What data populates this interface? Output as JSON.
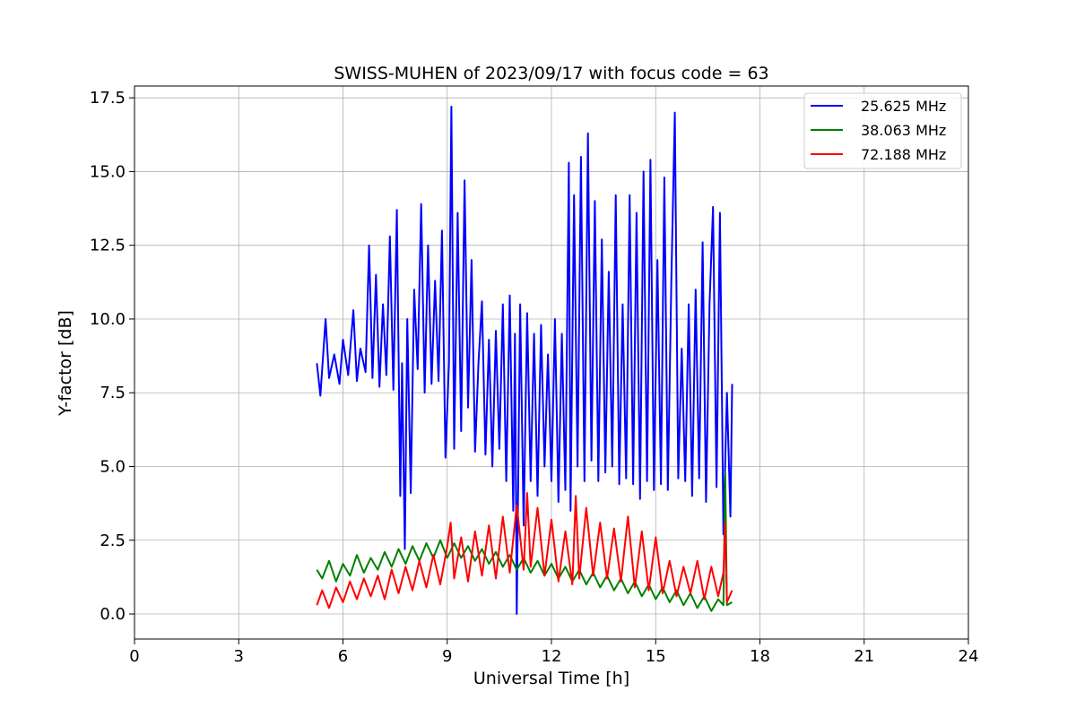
{
  "chart_data": {
    "type": "line",
    "title": "SWISS-MUHEN of 2023/09/17 with focus code = 63",
    "xlabel": "Universal Time [h]",
    "ylabel": "Y-factor [dB]",
    "xlim": [
      0,
      24
    ],
    "ylim": [
      -0.85,
      17.9
    ],
    "xticks": [
      0,
      3,
      6,
      9,
      12,
      15,
      18,
      21,
      24
    ],
    "yticks": [
      0.0,
      2.5,
      5.0,
      7.5,
      10.0,
      12.5,
      15.0,
      17.5
    ],
    "ytick_labels": [
      "0.0",
      "2.5",
      "5.0",
      "7.5",
      "10.0",
      "12.5",
      "15.0",
      "17.5"
    ],
    "grid": true,
    "legend_position": "top-right",
    "series": [
      {
        "name": "25.625 MHz",
        "color": "#0000ff",
        "x": [
          5.25,
          5.35,
          5.5,
          5.6,
          5.75,
          5.9,
          6.0,
          6.15,
          6.3,
          6.4,
          6.5,
          6.65,
          6.75,
          6.85,
          6.95,
          7.05,
          7.15,
          7.25,
          7.35,
          7.45,
          7.55,
          7.65,
          7.7,
          7.78,
          7.85,
          7.95,
          8.05,
          8.15,
          8.25,
          8.35,
          8.45,
          8.55,
          8.65,
          8.75,
          8.85,
          8.95,
          9.05,
          9.12,
          9.2,
          9.3,
          9.4,
          9.5,
          9.6,
          9.7,
          9.8,
          9.9,
          10.0,
          10.1,
          10.2,
          10.3,
          10.4,
          10.5,
          10.6,
          10.7,
          10.8,
          10.9,
          10.95,
          11.0,
          11.1,
          11.2,
          11.3,
          11.4,
          11.5,
          11.6,
          11.7,
          11.8,
          11.9,
          12.0,
          12.1,
          12.2,
          12.3,
          12.4,
          12.5,
          12.55,
          12.65,
          12.75,
          12.85,
          12.95,
          13.05,
          13.15,
          13.25,
          13.35,
          13.45,
          13.55,
          13.65,
          13.75,
          13.85,
          13.95,
          14.05,
          14.15,
          14.25,
          14.35,
          14.45,
          14.55,
          14.65,
          14.75,
          14.85,
          14.95,
          15.05,
          15.15,
          15.25,
          15.35,
          15.45,
          15.55,
          15.65,
          15.75,
          15.85,
          15.95,
          16.05,
          16.15,
          16.25,
          16.35,
          16.45,
          16.55,
          16.65,
          16.75,
          16.85,
          16.95,
          17.05,
          17.15,
          17.2
        ],
        "y": [
          8.5,
          7.4,
          10.0,
          8.0,
          8.8,
          7.8,
          9.3,
          8.1,
          10.3,
          7.9,
          9.0,
          8.2,
          12.5,
          8.0,
          11.5,
          7.7,
          10.5,
          8.1,
          12.8,
          7.6,
          13.7,
          4.0,
          8.5,
          2.2,
          10.0,
          4.1,
          11.0,
          8.3,
          13.9,
          7.5,
          12.5,
          7.8,
          11.3,
          7.9,
          13.0,
          5.3,
          8.5,
          17.2,
          5.6,
          13.6,
          6.2,
          14.7,
          7.0,
          12.0,
          5.5,
          8.5,
          10.6,
          5.4,
          9.3,
          5.0,
          9.6,
          5.6,
          10.5,
          4.5,
          10.8,
          3.5,
          9.5,
          0.0,
          10.5,
          3.0,
          10.2,
          4.5,
          9.5,
          4.0,
          9.8,
          5.0,
          8.8,
          4.5,
          10.0,
          3.8,
          9.5,
          4.2,
          15.3,
          3.5,
          14.2,
          5.0,
          15.5,
          4.5,
          16.3,
          5.2,
          14.0,
          4.5,
          12.7,
          4.8,
          11.6,
          5.0,
          14.2,
          4.4,
          10.5,
          4.6,
          14.2,
          4.4,
          13.6,
          3.9,
          15.0,
          4.5,
          15.4,
          4.2,
          12.0,
          4.4,
          14.8,
          4.2,
          11.3,
          17.0,
          4.6,
          9.0,
          4.5,
          10.5,
          4.0,
          11.0,
          4.6,
          12.6,
          3.8,
          10.5,
          13.8,
          4.3,
          13.6,
          2.7,
          7.5,
          3.3,
          7.8
        ]
      },
      {
        "name": "38.063 MHz",
        "color": "#008000",
        "x": [
          5.25,
          5.4,
          5.6,
          5.8,
          6.0,
          6.2,
          6.4,
          6.6,
          6.8,
          7.0,
          7.2,
          7.4,
          7.6,
          7.8,
          8.0,
          8.2,
          8.4,
          8.6,
          8.8,
          9.0,
          9.2,
          9.4,
          9.6,
          9.8,
          10.0,
          10.2,
          10.4,
          10.6,
          10.8,
          11.0,
          11.2,
          11.4,
          11.6,
          11.8,
          12.0,
          12.2,
          12.4,
          12.6,
          12.8,
          13.0,
          13.2,
          13.4,
          13.6,
          13.8,
          14.0,
          14.2,
          14.4,
          14.6,
          14.8,
          15.0,
          15.2,
          15.4,
          15.6,
          15.8,
          16.0,
          16.2,
          16.4,
          16.6,
          16.8,
          16.95,
          17.0,
          17.05,
          17.2
        ],
        "y": [
          1.5,
          1.2,
          1.8,
          1.1,
          1.7,
          1.3,
          2.0,
          1.4,
          1.9,
          1.5,
          2.1,
          1.6,
          2.2,
          1.7,
          2.3,
          1.8,
          2.4,
          1.9,
          2.5,
          1.9,
          2.4,
          1.9,
          2.3,
          1.8,
          2.2,
          1.7,
          2.1,
          1.6,
          2.0,
          1.5,
          1.9,
          1.4,
          1.8,
          1.3,
          1.7,
          1.2,
          1.6,
          1.1,
          1.5,
          1.0,
          1.4,
          0.9,
          1.3,
          0.8,
          1.2,
          0.7,
          1.1,
          0.6,
          1.0,
          0.5,
          0.9,
          0.4,
          0.8,
          0.3,
          0.7,
          0.2,
          0.6,
          0.1,
          0.5,
          0.3,
          4.8,
          0.3,
          0.4
        ]
      },
      {
        "name": "72.188 MHz",
        "color": "#ff0000",
        "x": [
          5.25,
          5.4,
          5.6,
          5.8,
          6.0,
          6.2,
          6.4,
          6.6,
          6.8,
          7.0,
          7.2,
          7.4,
          7.6,
          7.8,
          8.0,
          8.2,
          8.4,
          8.6,
          8.8,
          9.0,
          9.1,
          9.2,
          9.4,
          9.6,
          9.8,
          10.0,
          10.2,
          10.4,
          10.6,
          10.8,
          11.0,
          11.2,
          11.3,
          11.4,
          11.6,
          11.8,
          12.0,
          12.2,
          12.4,
          12.6,
          12.7,
          12.8,
          13.0,
          13.2,
          13.4,
          13.6,
          13.8,
          14.0,
          14.2,
          14.4,
          14.6,
          14.8,
          15.0,
          15.2,
          15.4,
          15.6,
          15.8,
          16.0,
          16.2,
          16.4,
          16.6,
          16.8,
          16.95,
          17.0,
          17.05,
          17.2
        ],
        "y": [
          0.3,
          0.8,
          0.2,
          0.9,
          0.4,
          1.1,
          0.5,
          1.2,
          0.6,
          1.3,
          0.5,
          1.5,
          0.7,
          1.6,
          0.8,
          1.8,
          0.9,
          2.0,
          1.0,
          2.3,
          3.1,
          1.2,
          2.6,
          1.1,
          2.8,
          1.3,
          3.0,
          1.2,
          3.3,
          1.4,
          3.7,
          1.5,
          4.1,
          1.6,
          3.6,
          1.3,
          3.2,
          1.1,
          2.8,
          1.0,
          4.0,
          1.2,
          3.6,
          1.3,
          3.1,
          1.2,
          2.9,
          1.1,
          3.3,
          0.9,
          2.8,
          0.8,
          2.6,
          0.7,
          1.8,
          0.6,
          1.6,
          0.7,
          1.8,
          0.5,
          1.6,
          0.6,
          1.4,
          3.1,
          0.4,
          0.8
        ]
      }
    ]
  }
}
